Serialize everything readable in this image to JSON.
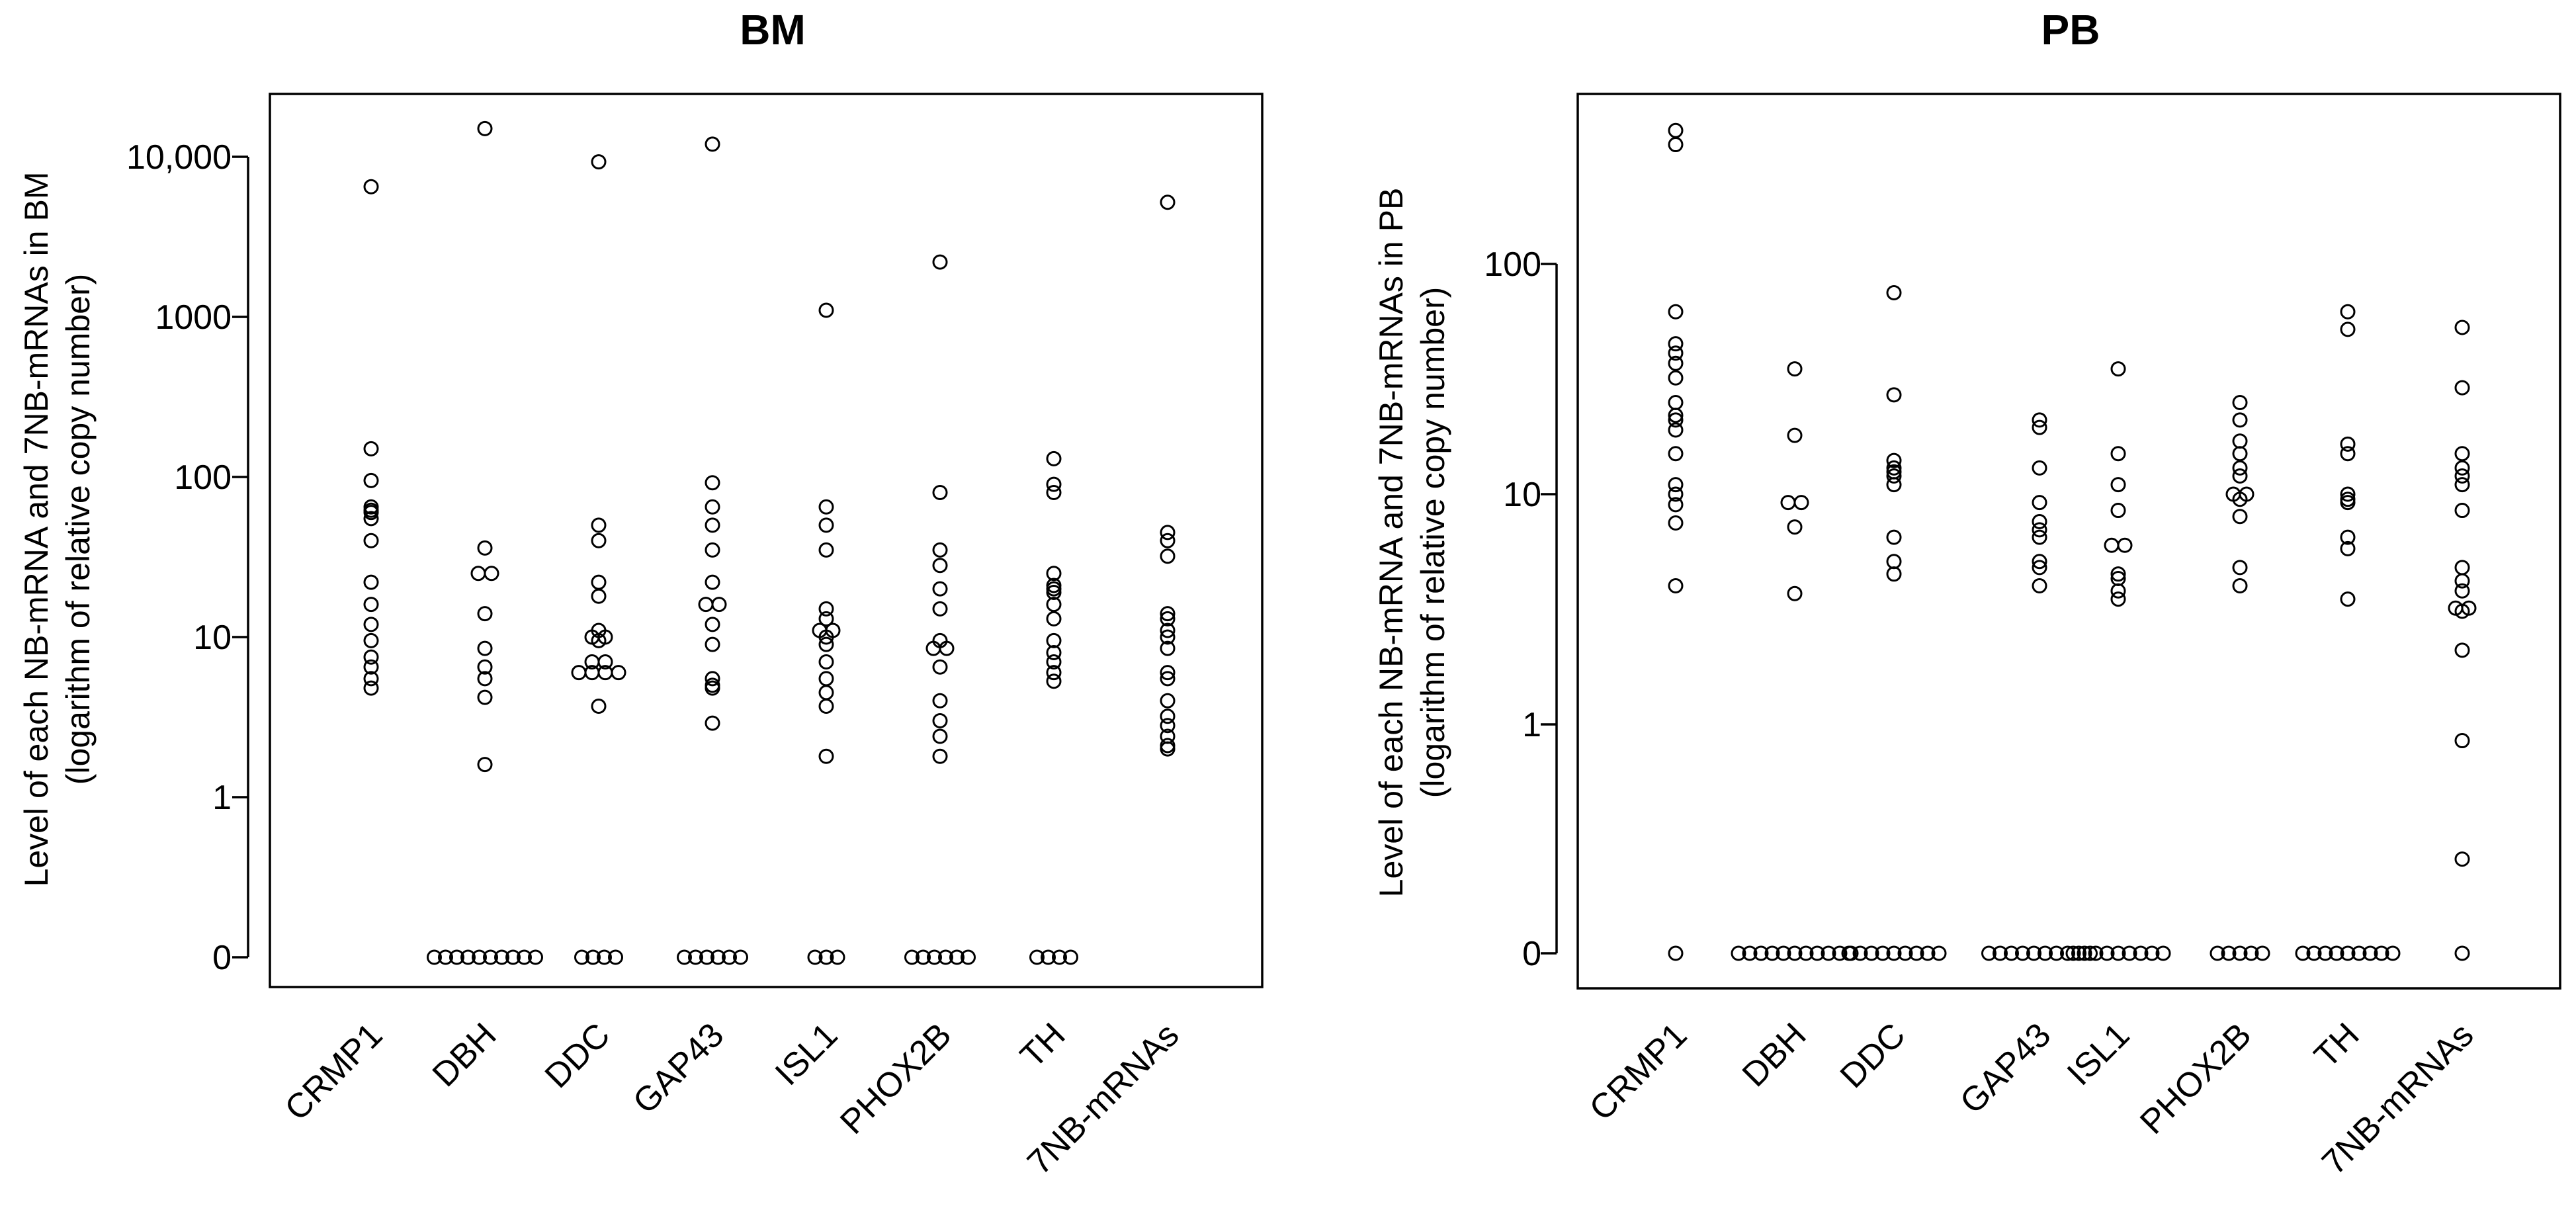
{
  "chart_data": [
    {
      "type": "scatter",
      "title": "BM",
      "ylabel_line1": "Level of each NB-mRNA and 7NB-mRNAs in BM",
      "ylabel_line2": "(logarithm of relative copy number)",
      "yscale": "log",
      "categories": [
        "CRMP1",
        "DBH",
        "DDC",
        "GAP43",
        "ISL1",
        "PHOX2B",
        "TH",
        "7NB-mRNAs"
      ],
      "yticks": [
        {
          "value": 0,
          "label": "0"
        },
        {
          "value": 1,
          "label": "1"
        },
        {
          "value": 10,
          "label": "10"
        },
        {
          "value": 100,
          "label": "100"
        },
        {
          "value": 1000,
          "label": "1000"
        },
        {
          "value": 10000,
          "label": "10,000"
        }
      ],
      "series": [
        {
          "category": "CRMP1",
          "values": [
            6500,
            150,
            95,
            65,
            62,
            60,
            55,
            40,
            22,
            16,
            12,
            9.5,
            7.5,
            6.5,
            5.5,
            4.8
          ]
        },
        {
          "category": "DBH",
          "values": [
            15000,
            36,
            25,
            25,
            14,
            8.5,
            6.5,
            5.5,
            4.2,
            1.6,
            0,
            0,
            0,
            0,
            0,
            0,
            0,
            0,
            0,
            0
          ]
        },
        {
          "category": "DDC",
          "values": [
            9300,
            50,
            40,
            22,
            18,
            11,
            10,
            10,
            9.5,
            7,
            7,
            6,
            6,
            6,
            6,
            3.7,
            0,
            0,
            0,
            0
          ]
        },
        {
          "category": "GAP43",
          "values": [
            12000,
            92,
            65,
            50,
            35,
            22,
            16,
            16,
            12,
            9,
            5.5,
            5,
            4.8,
            2.9,
            0,
            0,
            0,
            0,
            0,
            0
          ]
        },
        {
          "category": "ISL1",
          "values": [
            1100,
            65,
            50,
            35,
            15,
            13,
            11,
            11,
            10,
            9,
            7,
            5.5,
            4.5,
            3.7,
            1.8,
            0,
            0,
            0
          ]
        },
        {
          "category": "PHOX2B",
          "values": [
            2200,
            80,
            35,
            28,
            20,
            15,
            9.5,
            8.5,
            8.5,
            6.5,
            4,
            3,
            2.4,
            1.8,
            0,
            0,
            0,
            0,
            0,
            0
          ]
        },
        {
          "category": "TH",
          "values": [
            130,
            90,
            80,
            25,
            21,
            20,
            19,
            16,
            13,
            9.5,
            8,
            7,
            6,
            5.3,
            0,
            0,
            0,
            0
          ]
        },
        {
          "category": "7NB-mRNAs",
          "values": [
            5200,
            45,
            40,
            32,
            14,
            13,
            11,
            10,
            8.5,
            6,
            5.5,
            4,
            3.2,
            2.8,
            2.4,
            2.1,
            2
          ]
        }
      ]
    },
    {
      "type": "scatter",
      "title": "PB",
      "ylabel_line1": "Level of each NB-mRNA and 7NB-mRNAs in PB",
      "ylabel_line2": "(logarithm of relative copy number)",
      "yscale": "log",
      "categories": [
        "CRMP1",
        "DBH",
        "DDC",
        "GAP43",
        "ISL1",
        "PHOX2B",
        "TH",
        "7NB-mRNAs"
      ],
      "yticks": [
        {
          "value": 0,
          "label": "0"
        },
        {
          "value": 1,
          "label": "1"
        },
        {
          "value": 10,
          "label": "10"
        },
        {
          "value": 100,
          "label": "100"
        }
      ],
      "series": [
        {
          "category": "CRMP1",
          "values": [
            380,
            330,
            62,
            45,
            41,
            37,
            32,
            25,
            22,
            21,
            19,
            15,
            11,
            10,
            9,
            7.5,
            4,
            0
          ]
        },
        {
          "category": "DBH",
          "values": [
            35,
            18,
            9.2,
            9.2,
            7.2,
            3.7,
            0,
            0,
            0,
            0,
            0,
            0,
            0,
            0,
            0,
            0,
            0
          ]
        },
        {
          "category": "DDC",
          "values": [
            75,
            27,
            14,
            13,
            12.5,
            12,
            11,
            6.5,
            5.1,
            4.5,
            0,
            0,
            0,
            0,
            0,
            0,
            0,
            0,
            0
          ]
        },
        {
          "category": "GAP43",
          "values": [
            21,
            19.5,
            13,
            9.2,
            7.6,
            7,
            6.5,
            5.1,
            4.8,
            4,
            0,
            0,
            0,
            0,
            0,
            0,
            0,
            0,
            0,
            0
          ]
        },
        {
          "category": "ISL1",
          "values": [
            35,
            15,
            11,
            8.5,
            6,
            6,
            4.5,
            4.3,
            3.8,
            3.5,
            0,
            0,
            0,
            0,
            0,
            0,
            0,
            0,
            0
          ]
        },
        {
          "category": "PHOX2B",
          "values": [
            25,
            21,
            17,
            15,
            13,
            12,
            10,
            10,
            9.5,
            8,
            4.8,
            4,
            0,
            0,
            0,
            0,
            0
          ]
        },
        {
          "category": "TH",
          "values": [
            62,
            52,
            16.5,
            15,
            10,
            9.5,
            9.2,
            6.5,
            5.8,
            3.5,
            0,
            0,
            0,
            0,
            0,
            0,
            0,
            0,
            0
          ]
        },
        {
          "category": "7NB-mRNAs",
          "values": [
            53,
            29,
            15,
            13,
            12,
            11,
            8.5,
            4.8,
            4.2,
            3.8,
            3.2,
            3.2,
            3.1,
            2.1,
            0.85,
            0.26,
            0
          ]
        }
      ]
    }
  ]
}
